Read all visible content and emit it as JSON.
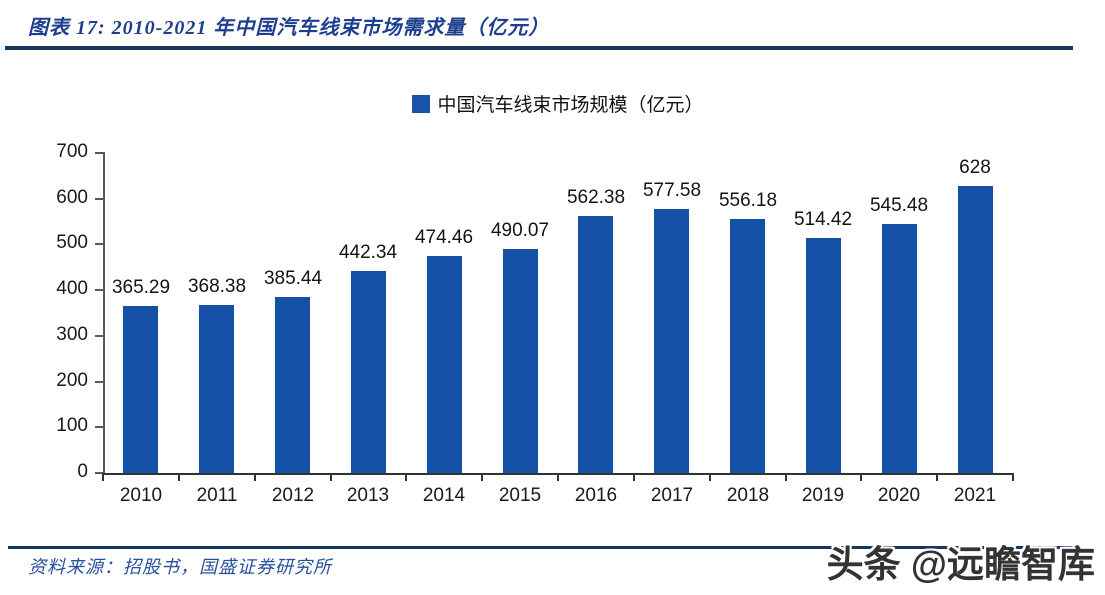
{
  "header": {
    "title": "图表 17:  2010-2021 年中国汽车线束市场需求量（亿元）"
  },
  "legend": {
    "label": "中国汽车线束市场规模（亿元）",
    "swatch_color": "#1A52AB"
  },
  "chart_data": {
    "type": "bar",
    "title": "中国汽车线束市场规模（亿元）",
    "categories": [
      "2010",
      "2011",
      "2012",
      "2013",
      "2014",
      "2015",
      "2016",
      "2017",
      "2018",
      "2019",
      "2020",
      "2021"
    ],
    "values": [
      365.29,
      368.38,
      385.44,
      442.34,
      474.46,
      490.07,
      562.38,
      577.58,
      556.18,
      514.42,
      545.48,
      628
    ],
    "value_labels": [
      "365.29",
      "368.38",
      "385.44",
      "442.34",
      "474.46",
      "490.07",
      "562.38",
      "577.58",
      "556.18",
      "514.42",
      "545.48",
      "628"
    ],
    "xlabel": "",
    "ylabel": "",
    "ylim": [
      0,
      700
    ],
    "yticks": [
      0,
      100,
      200,
      300,
      400,
      500,
      600,
      700
    ],
    "bar_color": "#1450A5",
    "grid": false,
    "legend_position": "top"
  },
  "footer": {
    "source": "资料来源：招股书，国盛证券研究所",
    "watermark": "头条 @远瞻智库"
  },
  "colors": {
    "title_blue": "#1e3f8f",
    "rule_navy": "#17375E",
    "bar_blue": "#1450A5",
    "axis_gray": "#595959",
    "label_black": "#1a1a1a",
    "source_blue": "#27509e",
    "watermark_gray": "#333333"
  }
}
